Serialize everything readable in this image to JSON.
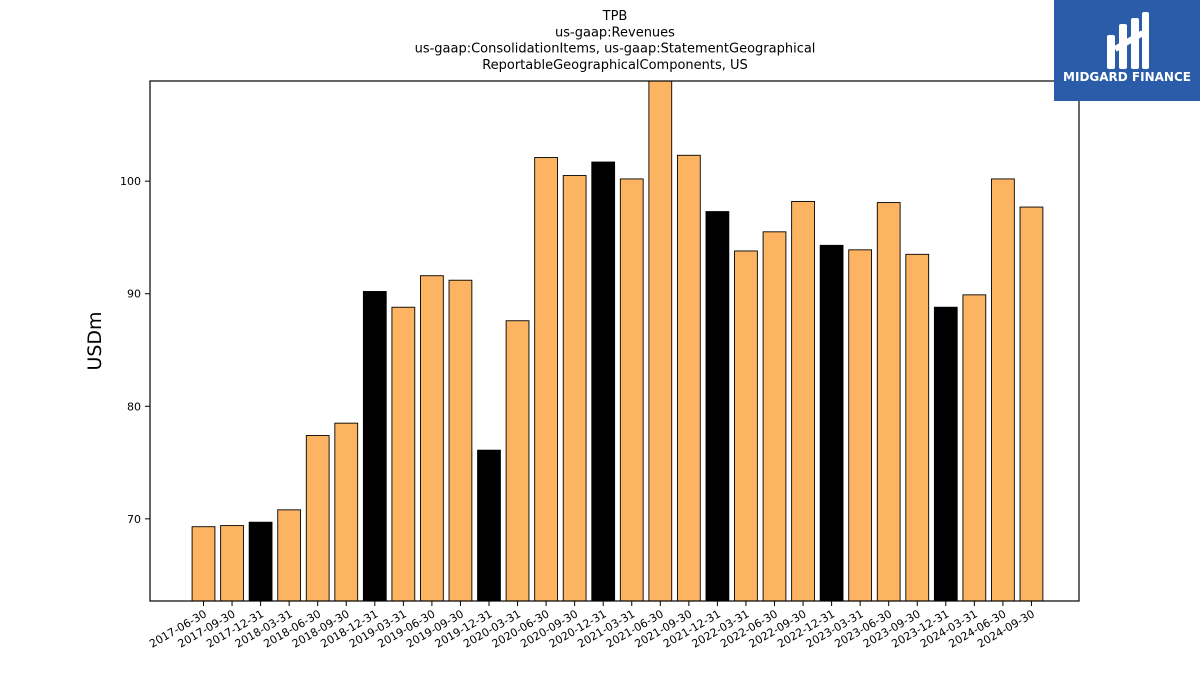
{
  "chart_data": {
    "type": "bar",
    "title_lines": [
      "TPB",
      "us-gaap:Revenues",
      "us-gaap:ConsolidationItems, us-gaap:StatementGeographical",
      "ReportableGeographicalComponents, US"
    ],
    "ylabel": "USDm",
    "xlabel": "",
    "ylim": [
      62.7,
      108.9
    ],
    "yticks": [
      70,
      80,
      90,
      100
    ],
    "categories": [
      "2017-06-30",
      "2017-09-30",
      "2017-12-31",
      "2018-03-31",
      "2018-06-30",
      "2018-09-30",
      "2018-12-31",
      "2019-03-31",
      "2019-06-30",
      "2019-09-30",
      "2019-12-31",
      "2020-03-31",
      "2020-06-30",
      "2020-09-30",
      "2020-12-31",
      "2021-03-31",
      "2021-06-30",
      "2021-09-30",
      "2021-12-31",
      "2022-03-31",
      "2022-06-30",
      "2022-09-30",
      "2022-12-31",
      "2023-03-31",
      "2023-06-30",
      "2023-09-30",
      "2023-12-31",
      "2024-03-31",
      "2024-06-30",
      "2024-09-30"
    ],
    "values": [
      69.3,
      69.4,
      69.7,
      70.8,
      77.4,
      78.5,
      90.2,
      88.8,
      91.6,
      91.2,
      76.1,
      87.6,
      102.1,
      100.5,
      101.7,
      100.2,
      109.5,
      102.3,
      97.3,
      93.8,
      95.5,
      98.2,
      94.3,
      93.9,
      98.1,
      93.5,
      88.8,
      89.9,
      100.2,
      97.7
    ],
    "year_end_quarters": [
      "2017-12-31",
      "2018-12-31",
      "2019-12-31",
      "2020-12-31",
      "2021-12-31",
      "2022-12-31",
      "2023-12-31"
    ],
    "colors": {
      "quarter_bar": "#fdb462",
      "year_end_bar": "#000000",
      "bar_edge": "#000000"
    },
    "grid": false,
    "legend": "none"
  },
  "logo": {
    "text": "MIDGARD FINANCE",
    "background": "#2a5caa"
  }
}
